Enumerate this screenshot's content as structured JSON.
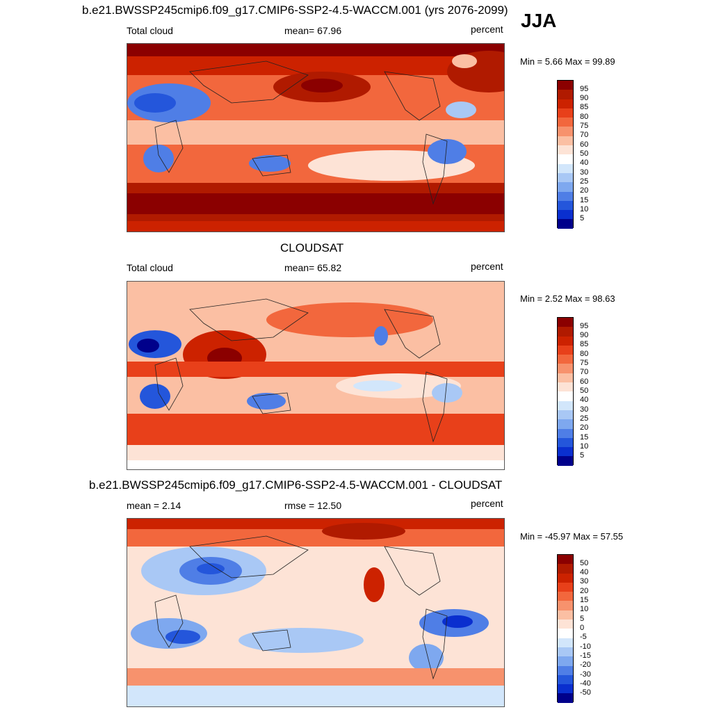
{
  "header": {
    "season": "JJA"
  },
  "panels": [
    {
      "id": "model",
      "title": "b.e21.BWSSP245cmip6.f09_g17.CMIP6-SSP2-4.5-WACCM.001 (yrs 2076-2099)",
      "left_label": "Total cloud",
      "center_label": "mean=  67.96",
      "units": "percent",
      "minmax": "Min =   5.66 Max =  99.89",
      "levels": [
        "95",
        "90",
        "85",
        "80",
        "75",
        "70",
        "60",
        "50",
        "40",
        "30",
        "25",
        "20",
        "15",
        "10",
        "5"
      ]
    },
    {
      "id": "obs",
      "title": "CLOUDSAT",
      "left_label": "Total cloud",
      "center_label": "mean=  65.82",
      "units": "percent",
      "minmax": "Min =   2.52 Max =  98.63",
      "levels": [
        "95",
        "90",
        "85",
        "80",
        "75",
        "70",
        "60",
        "50",
        "40",
        "30",
        "25",
        "20",
        "15",
        "10",
        "5"
      ]
    },
    {
      "id": "diff",
      "title": "b.e21.BWSSP245cmip6.f09_g17.CMIP6-SSP2-4.5-WACCM.001 - CLOUDSAT",
      "left_label": "mean =   2.14",
      "center_label": "rmse =  12.50",
      "units": "percent",
      "minmax": "Min = -45.97 Max =  57.55",
      "levels": [
        "50",
        "40",
        "30",
        "20",
        "15",
        "10",
        "5",
        "0",
        "-5",
        "-10",
        "-15",
        "-20",
        "-30",
        "-40",
        "-50"
      ]
    }
  ],
  "colors": {
    "scale": [
      "#8b0000",
      "#b01a00",
      "#cc2200",
      "#e8401a",
      "#f2673d",
      "#f7926d",
      "#fbbfa3",
      "#fde3d6",
      "#ffffff",
      "#d2e6fb",
      "#a9c8f5",
      "#7ea8ef",
      "#4f7ee6",
      "#2456db",
      "#0a2fcf",
      "#00008b"
    ]
  }
}
